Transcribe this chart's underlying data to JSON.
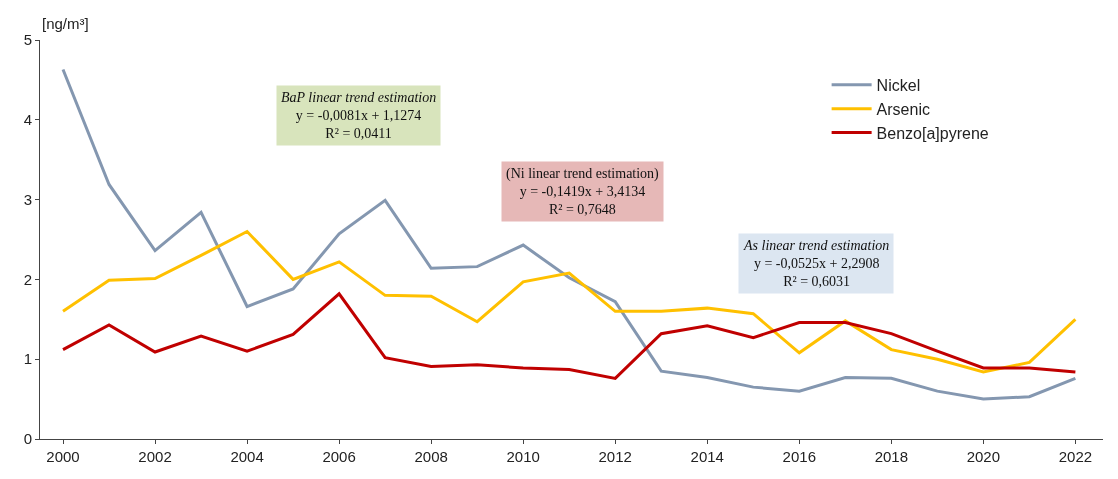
{
  "chart_data": {
    "type": "line",
    "ylabel": "[ng/m³]",
    "x": [
      2000,
      2001,
      2002,
      2003,
      2004,
      2005,
      2006,
      2007,
      2008,
      2009,
      2010,
      2011,
      2012,
      2013,
      2014,
      2015,
      2016,
      2017,
      2018,
      2019,
      2020,
      2021,
      2022
    ],
    "series": [
      {
        "name": "Nickel",
        "color": "#8497b0",
        "values": [
          4.63,
          3.19,
          2.36,
          2.84,
          1.66,
          1.88,
          2.57,
          2.99,
          2.14,
          2.16,
          2.43,
          2.02,
          1.72,
          0.85,
          0.77,
          0.65,
          0.6,
          0.77,
          0.76,
          0.6,
          0.5,
          0.53,
          0.76
        ]
      },
      {
        "name": "Arsenic",
        "color": "#ffc000",
        "values": [
          1.6,
          1.99,
          2.01,
          2.3,
          2.6,
          2.0,
          2.22,
          1.8,
          1.79,
          1.47,
          1.97,
          2.08,
          1.6,
          1.6,
          1.64,
          1.57,
          1.08,
          1.48,
          1.12,
          1.0,
          0.84,
          0.96,
          1.5
        ]
      },
      {
        "name": "Benzo[a]pyrene",
        "color": "#c00000",
        "values": [
          1.12,
          1.43,
          1.09,
          1.29,
          1.1,
          1.31,
          1.82,
          1.02,
          0.91,
          0.93,
          0.89,
          0.87,
          0.76,
          1.32,
          1.42,
          1.27,
          1.46,
          1.46,
          1.32,
          1.1,
          0.89,
          0.89,
          0.84
        ]
      }
    ],
    "xlim": [
      1999.5,
      2022.6
    ],
    "xticks": [
      2000,
      2002,
      2004,
      2006,
      2008,
      2010,
      2012,
      2014,
      2016,
      2018,
      2020,
      2022
    ],
    "ylim": [
      0,
      5
    ],
    "yticks": [
      0,
      1,
      2,
      3,
      4,
      5
    ],
    "annotations": [
      "BaP linear trend estimation\ny = -0,0081x + 1,1274\nR² = 0,0411",
      "(Ni linear trend estimation)\ny = -0,1419x + 3,4134\nR² = 0,7648",
      "As linear trend estimation\ny = -0,0525x + 2,2908\nR² = 0,6031"
    ],
    "legend": "top right",
    "marker": "none",
    "line_style": "solid"
  }
}
